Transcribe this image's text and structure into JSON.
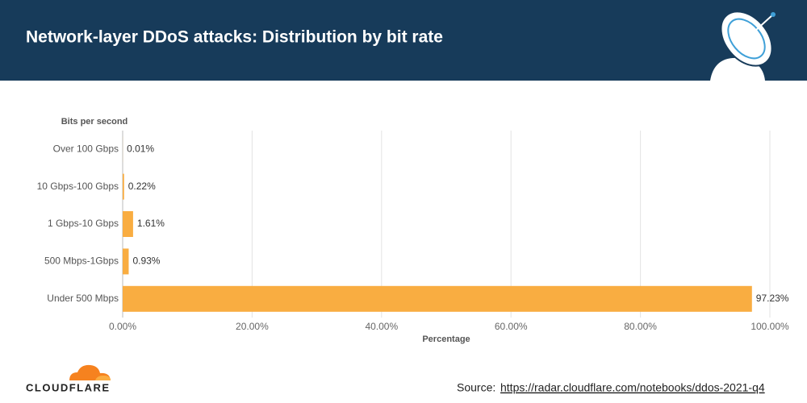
{
  "chart_data": {
    "type": "hbar",
    "title": "Network-layer DDoS attacks: Distribution by bit rate",
    "y_label": "Bits per second",
    "x_label": "Percentage",
    "categories": [
      "Over 100 Gbps",
      "10 Gbps-100 Gbps",
      "1 Gbps-10 Gbps",
      "500 Mbps-1Gbps",
      "Under 500 Mbps"
    ],
    "values": [
      0.01,
      0.22,
      1.61,
      0.93,
      97.23
    ],
    "value_labels": [
      "0.01%",
      "0.22%",
      "1.61%",
      "0.93%",
      "97.23%"
    ],
    "color": "#f9ad41",
    "xlim": [
      0,
      100
    ],
    "xticks": [
      {
        "value": 0,
        "label": "0.00%"
      },
      {
        "value": 20,
        "label": "20.00%"
      },
      {
        "value": 40,
        "label": "40.00%"
      },
      {
        "value": 60,
        "label": "60.00%"
      },
      {
        "value": 80,
        "label": "80.00%"
      },
      {
        "value": 100,
        "label": "100.00%"
      }
    ],
    "grid": true,
    "source_label": "Source:",
    "source_url": "https://radar.cloudflare.com/notebooks/ddos-2021-q4",
    "brand": "CLOUDFLARE"
  }
}
